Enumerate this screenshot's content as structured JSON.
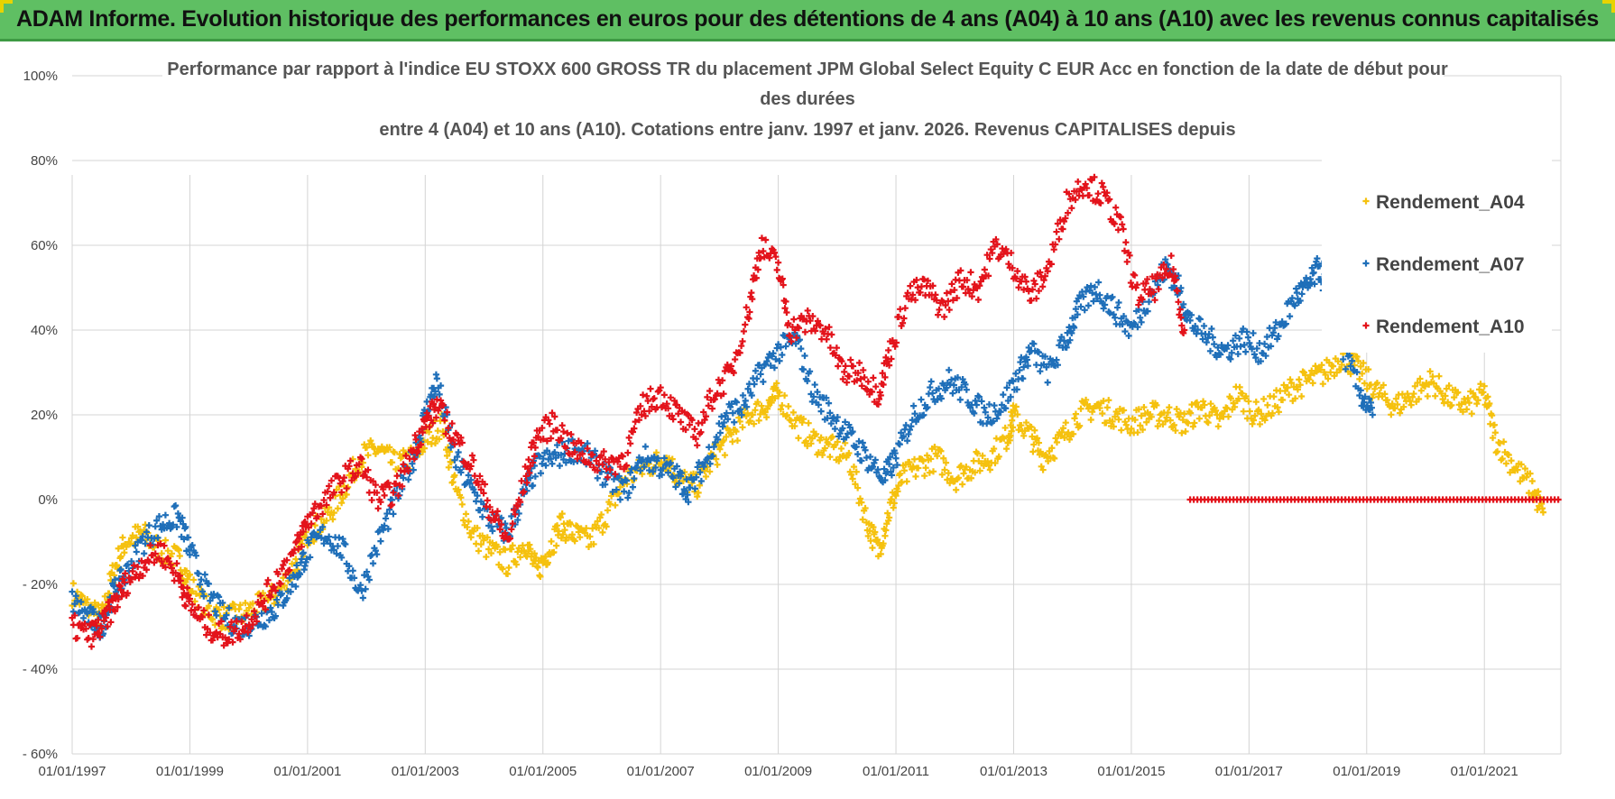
{
  "header": {
    "title": "ADAM Informe. Evolution historique des performances en euros pour des détentions de 4 ans (A04) à 10 ans (A10) avec les revenus connus capitalisés"
  },
  "colors": {
    "banner": "#5fbf63",
    "a04": "#f5c10e",
    "a07": "#1f6fb9",
    "a10": "#e3131b",
    "grid": "#d4d4d4"
  },
  "chart_data": {
    "type": "scatter",
    "title_lines": [
      "Performance par rapport à l'indice EU STOXX 600 GROSS TR  du placement JPM Global Select Equity C EUR Acc en fonction de la date de début pour",
      "des durées",
      "entre 4 (A04) et 10 ans (A10). Cotations entre janv. 1997 et janv. 2026. Revenus CAPITALISES depuis"
    ],
    "xlabel": "",
    "ylabel": "",
    "x_range": [
      1997.0,
      2022.3
    ],
    "ylim": [
      -60,
      100
    ],
    "y_ticks": [
      "100%",
      "80%",
      "60%",
      "40%",
      "20%",
      "0%",
      "- 20%",
      "- 40%",
      "- 60%"
    ],
    "y_tick_values": [
      100,
      80,
      60,
      40,
      20,
      0,
      -20,
      -40,
      -60
    ],
    "x_ticks": [
      "01/01/1997",
      "01/01/1999",
      "01/01/2001",
      "01/01/2003",
      "01/01/2005",
      "01/01/2007",
      "01/01/2009",
      "01/01/2011",
      "01/01/2013",
      "01/01/2015",
      "01/01/2017",
      "01/01/2019",
      "01/01/2021"
    ],
    "x_tick_values": [
      1997,
      1999,
      2001,
      2003,
      2005,
      2007,
      2009,
      2011,
      2013,
      2015,
      2017,
      2019,
      2021
    ],
    "legend_position": "top-right",
    "series": [
      {
        "name": "Rendement_A04",
        "color": "#f5c10e",
        "points": [
          [
            1997.0,
            -22
          ],
          [
            1997.3,
            -26
          ],
          [
            1997.5,
            -28
          ],
          [
            1997.7,
            -17
          ],
          [
            1997.9,
            -10
          ],
          [
            1998.2,
            -8
          ],
          [
            1998.5,
            -12
          ],
          [
            1998.8,
            -14
          ],
          [
            1999.0,
            -20
          ],
          [
            1999.3,
            -26
          ],
          [
            1999.6,
            -28
          ],
          [
            1999.9,
            -27
          ],
          [
            2000.2,
            -25
          ],
          [
            2000.5,
            -22
          ],
          [
            2000.8,
            -15
          ],
          [
            2001.0,
            -8
          ],
          [
            2001.3,
            -5
          ],
          [
            2001.6,
            2
          ],
          [
            2001.9,
            10
          ],
          [
            2002.2,
            12
          ],
          [
            2002.5,
            8
          ],
          [
            2002.8,
            10
          ],
          [
            2003.0,
            14
          ],
          [
            2003.3,
            18
          ],
          [
            2003.5,
            3
          ],
          [
            2003.8,
            -8
          ],
          [
            2004.1,
            -12
          ],
          [
            2004.4,
            -15
          ],
          [
            2004.7,
            -10
          ],
          [
            2004.9,
            -17
          ],
          [
            2005.1,
            -12
          ],
          [
            2005.3,
            -6
          ],
          [
            2005.5,
            -8
          ],
          [
            2005.8,
            -10
          ],
          [
            2006.1,
            -3
          ],
          [
            2006.4,
            5
          ],
          [
            2006.8,
            8
          ],
          [
            2007.1,
            10
          ],
          [
            2007.3,
            5
          ],
          [
            2007.6,
            3
          ],
          [
            2007.9,
            10
          ],
          [
            2008.2,
            15
          ],
          [
            2008.5,
            20
          ],
          [
            2008.8,
            22
          ],
          [
            2009.0,
            25
          ],
          [
            2009.3,
            18
          ],
          [
            2009.6,
            14
          ],
          [
            2009.9,
            12
          ],
          [
            2010.2,
            10
          ],
          [
            2010.5,
            -5
          ],
          [
            2010.7,
            -12
          ],
          [
            2010.9,
            -2
          ],
          [
            2011.1,
            5
          ],
          [
            2011.4,
            8
          ],
          [
            2011.7,
            10
          ],
          [
            2012.0,
            5
          ],
          [
            2012.3,
            8
          ],
          [
            2012.6,
            10
          ],
          [
            2012.9,
            15
          ],
          [
            2013.0,
            20
          ],
          [
            2013.3,
            15
          ],
          [
            2013.5,
            10
          ],
          [
            2013.8,
            14
          ],
          [
            2014.1,
            20
          ],
          [
            2014.4,
            22
          ],
          [
            2014.7,
            20
          ],
          [
            2015.0,
            18
          ],
          [
            2015.3,
            20
          ],
          [
            2015.6,
            20
          ],
          [
            2015.9,
            18
          ],
          [
            2016.2,
            22
          ],
          [
            2016.5,
            18
          ],
          [
            2016.8,
            25
          ],
          [
            2017.1,
            20
          ],
          [
            2017.4,
            22
          ],
          [
            2017.7,
            26
          ],
          [
            2018.0,
            28
          ],
          [
            2018.3,
            30
          ],
          [
            2018.6,
            34
          ],
          [
            2018.9,
            30
          ],
          [
            2019.2,
            25
          ],
          [
            2019.5,
            22
          ],
          [
            2019.8,
            25
          ],
          [
            2020.1,
            28
          ],
          [
            2020.4,
            24
          ],
          [
            2020.7,
            22
          ],
          [
            2021.0,
            25
          ],
          [
            2021.2,
            14
          ],
          [
            2021.5,
            8
          ],
          [
            2021.8,
            3
          ],
          [
            2022.0,
            -3
          ]
        ]
      },
      {
        "name": "Rendement_A07",
        "color": "#1f6fb9",
        "points": [
          [
            1997.0,
            -24
          ],
          [
            1997.3,
            -28
          ],
          [
            1997.5,
            -30
          ],
          [
            1997.7,
            -22
          ],
          [
            1997.9,
            -18
          ],
          [
            1998.2,
            -10
          ],
          [
            1998.5,
            -6
          ],
          [
            1998.8,
            -4
          ],
          [
            1999.0,
            -12
          ],
          [
            1999.3,
            -22
          ],
          [
            1999.6,
            -28
          ],
          [
            1999.9,
            -30
          ],
          [
            2000.2,
            -28
          ],
          [
            2000.5,
            -25
          ],
          [
            2000.8,
            -18
          ],
          [
            2001.0,
            -12
          ],
          [
            2001.3,
            -8
          ],
          [
            2001.6,
            -12
          ],
          [
            2001.9,
            -22
          ],
          [
            2002.2,
            -10
          ],
          [
            2002.5,
            0
          ],
          [
            2002.8,
            10
          ],
          [
            2003.0,
            20
          ],
          [
            2003.2,
            28
          ],
          [
            2003.5,
            10
          ],
          [
            2003.8,
            2
          ],
          [
            2004.1,
            -5
          ],
          [
            2004.4,
            -8
          ],
          [
            2004.7,
            2
          ],
          [
            2004.9,
            8
          ],
          [
            2005.2,
            10
          ],
          [
            2005.5,
            12
          ],
          [
            2005.8,
            10
          ],
          [
            2006.1,
            5
          ],
          [
            2006.4,
            2
          ],
          [
            2006.7,
            10
          ],
          [
            2007.0,
            8
          ],
          [
            2007.3,
            5
          ],
          [
            2007.5,
            2
          ],
          [
            2007.8,
            10
          ],
          [
            2008.1,
            20
          ],
          [
            2008.4,
            22
          ],
          [
            2008.7,
            30
          ],
          [
            2009.0,
            35
          ],
          [
            2009.3,
            38
          ],
          [
            2009.6,
            25
          ],
          [
            2009.9,
            20
          ],
          [
            2010.2,
            15
          ],
          [
            2010.5,
            10
          ],
          [
            2010.8,
            5
          ],
          [
            2011.0,
            10
          ],
          [
            2011.3,
            20
          ],
          [
            2011.6,
            25
          ],
          [
            2011.9,
            28
          ],
          [
            2012.2,
            25
          ],
          [
            2012.5,
            20
          ],
          [
            2012.8,
            22
          ],
          [
            2013.1,
            30
          ],
          [
            2013.3,
            35
          ],
          [
            2013.6,
            30
          ],
          [
            2013.9,
            38
          ],
          [
            2014.1,
            45
          ],
          [
            2014.4,
            50
          ],
          [
            2014.7,
            45
          ],
          [
            2015.0,
            40
          ],
          [
            2015.3,
            48
          ],
          [
            2015.6,
            55
          ],
          [
            2015.8,
            50
          ],
          [
            2016.0,
            42
          ],
          [
            2016.3,
            38
          ],
          [
            2016.6,
            35
          ],
          [
            2016.9,
            38
          ],
          [
            2017.2,
            35
          ],
          [
            2017.5,
            40
          ],
          [
            2017.8,
            48
          ],
          [
            2018.0,
            50
          ],
          [
            2018.2,
            55
          ],
          [
            2018.4,
            45
          ],
          [
            2018.6,
            35
          ],
          [
            2018.9,
            25
          ],
          [
            2019.1,
            20
          ]
        ]
      },
      {
        "name": "Rendement_A10",
        "color": "#e3131b",
        "points": [
          [
            1997.0,
            -30
          ],
          [
            1997.3,
            -32
          ],
          [
            1997.5,
            -30
          ],
          [
            1997.7,
            -25
          ],
          [
            1997.9,
            -20
          ],
          [
            1998.2,
            -15
          ],
          [
            1998.5,
            -12
          ],
          [
            1998.8,
            -18
          ],
          [
            1999.0,
            -25
          ],
          [
            1999.3,
            -30
          ],
          [
            1999.6,
            -32
          ],
          [
            1999.9,
            -30
          ],
          [
            2000.2,
            -25
          ],
          [
            2000.5,
            -18
          ],
          [
            2000.8,
            -12
          ],
          [
            2001.0,
            -5
          ],
          [
            2001.3,
            0
          ],
          [
            2001.6,
            5
          ],
          [
            2001.9,
            8
          ],
          [
            2002.2,
            0
          ],
          [
            2002.5,
            2
          ],
          [
            2002.8,
            12
          ],
          [
            2003.0,
            18
          ],
          [
            2003.2,
            22
          ],
          [
            2003.5,
            15
          ],
          [
            2003.8,
            8
          ],
          [
            2004.1,
            -2
          ],
          [
            2004.4,
            -10
          ],
          [
            2004.7,
            5
          ],
          [
            2004.9,
            15
          ],
          [
            2005.2,
            18
          ],
          [
            2005.5,
            12
          ],
          [
            2005.8,
            10
          ],
          [
            2006.1,
            8
          ],
          [
            2006.4,
            10
          ],
          [
            2006.7,
            22
          ],
          [
            2007.0,
            25
          ],
          [
            2007.3,
            20
          ],
          [
            2007.6,
            15
          ],
          [
            2007.9,
            25
          ],
          [
            2008.2,
            30
          ],
          [
            2008.5,
            45
          ],
          [
            2008.7,
            60
          ],
          [
            2009.0,
            55
          ],
          [
            2009.2,
            40
          ],
          [
            2009.5,
            42
          ],
          [
            2009.8,
            40
          ],
          [
            2010.1,
            30
          ],
          [
            2010.4,
            30
          ],
          [
            2010.7,
            25
          ],
          [
            2010.9,
            35
          ],
          [
            2011.2,
            48
          ],
          [
            2011.5,
            50
          ],
          [
            2011.8,
            45
          ],
          [
            2012.1,
            52
          ],
          [
            2012.4,
            50
          ],
          [
            2012.7,
            60
          ],
          [
            2013.0,
            55
          ],
          [
            2013.3,
            48
          ],
          [
            2013.6,
            55
          ],
          [
            2013.9,
            70
          ],
          [
            2014.2,
            75
          ],
          [
            2014.5,
            72
          ],
          [
            2014.8,
            65
          ],
          [
            2015.1,
            48
          ],
          [
            2015.4,
            50
          ],
          [
            2015.7,
            55
          ],
          [
            2015.9,
            40
          ]
        ],
        "zero_segment": {
          "x_start": 2016.0,
          "x_end": 2022.3,
          "value": 0
        }
      }
    ]
  }
}
